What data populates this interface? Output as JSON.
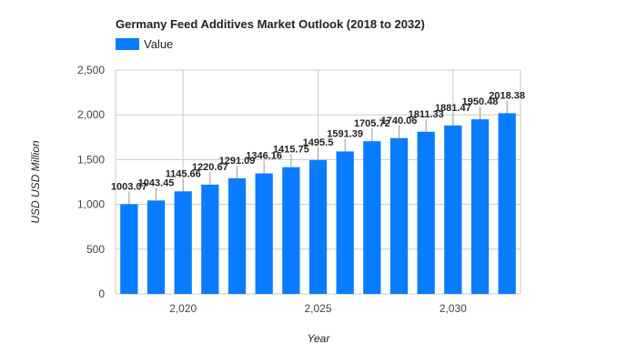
{
  "chart_data": {
    "type": "bar",
    "title": "Germany Feed Additives Market Outlook (2018 to 2032)",
    "xlabel": "Year",
    "ylabel": "USD USD Million",
    "legend": {
      "position": "top-left",
      "entries": [
        "Value"
      ]
    },
    "series": [
      {
        "name": "Value",
        "color": "#0a7cff",
        "x": [
          2018,
          2019,
          2020,
          2021,
          2022,
          2023,
          2024,
          2025,
          2026,
          2027,
          2028,
          2029,
          2030,
          2031,
          2032
        ],
        "values": [
          1003.07,
          1043.45,
          1145.66,
          1220.67,
          1291.09,
          1346.16,
          1415.75,
          1495.5,
          1591.39,
          1705.72,
          1740.06,
          1811.33,
          1881.47,
          1950.48,
          2018.38
        ],
        "labels": [
          "1003.07",
          "1043.45",
          "1145.66",
          "1220.67",
          "1291.09",
          "1346.16",
          "1415.75",
          "1495.5",
          "1591.39",
          "1705.72",
          "1740.06",
          "1811.33",
          "1881.47",
          "1950.48",
          "2018.38"
        ]
      }
    ],
    "ylim": [
      0,
      2500
    ],
    "yticks": [
      0,
      500,
      1000,
      1500,
      2000,
      2500
    ],
    "ytick_labels": [
      "0",
      "500",
      "1,000",
      "1,500",
      "2,000",
      "2,500"
    ],
    "xticks": [
      2020,
      2025,
      2030
    ],
    "xtick_labels": [
      "2,020",
      "2,025",
      "2,030"
    ],
    "grid": true,
    "colors": {
      "bar": "#0a7cff",
      "grid": "#cccccc",
      "text": "#222222"
    }
  }
}
